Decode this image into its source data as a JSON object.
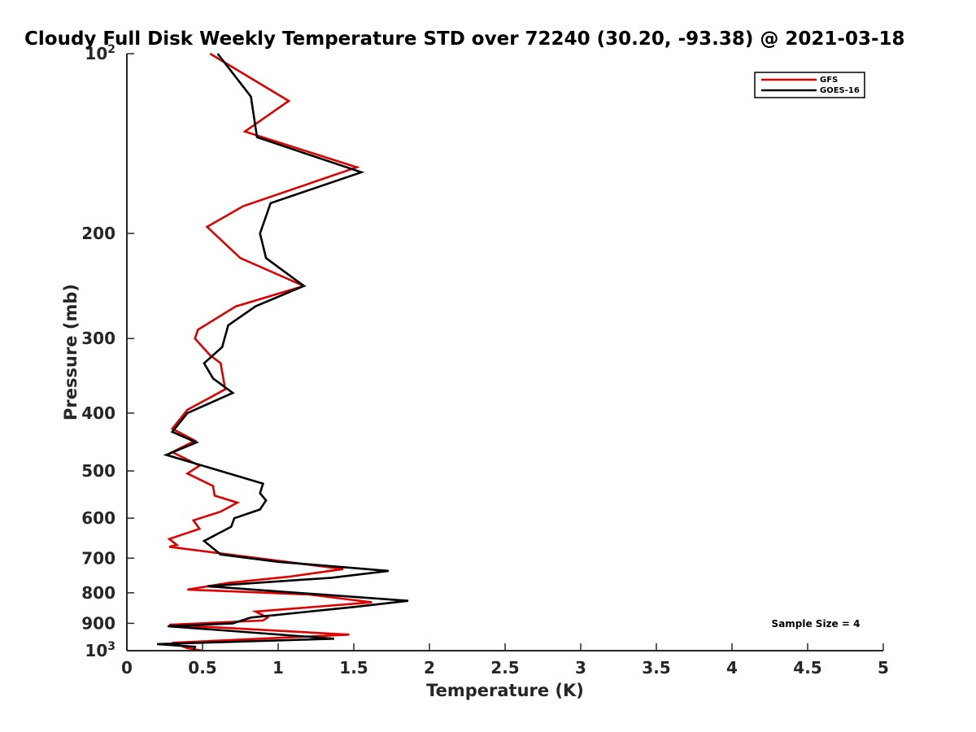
{
  "chart_data": {
    "type": "line",
    "title": "Cloudy Full Disk Weekly Temperature STD over 72240 (30.20, -93.38) @ 2021-03-18",
    "xlabel": "Temperature (K)",
    "ylabel": "Pressure (mb)",
    "xlim": [
      0,
      5
    ],
    "ylim": [
      100,
      1000
    ],
    "yscale": "log",
    "yreversed": true,
    "x_ticks": [
      "0",
      "0.5",
      "1",
      "1.5",
      "2",
      "2.5",
      "3",
      "3.5",
      "4",
      "4.5",
      "5"
    ],
    "y_ticks": [
      {
        "value": 100,
        "base": "10",
        "exp": "2"
      },
      {
        "value": 200,
        "label": "200"
      },
      {
        "value": 300,
        "label": "300"
      },
      {
        "value": 400,
        "label": "400"
      },
      {
        "value": 500,
        "label": "500"
      },
      {
        "value": 600,
        "label": "600"
      },
      {
        "value": 700,
        "label": "700"
      },
      {
        "value": 800,
        "label": "800"
      },
      {
        "value": 900,
        "label": "900"
      },
      {
        "value": 1000,
        "base": "10",
        "exp": "3"
      }
    ],
    "legend": {
      "position": "top-right"
    },
    "series": [
      {
        "name": "GFS",
        "color": "#e00000",
        "points": [
          [
            0.55,
            100
          ],
          [
            1.07,
            120
          ],
          [
            0.78,
            135
          ],
          [
            1.52,
            155
          ],
          [
            0.77,
            180
          ],
          [
            0.53,
            195
          ],
          [
            0.75,
            220
          ],
          [
            1.17,
            245
          ],
          [
            0.72,
            265
          ],
          [
            0.47,
            290
          ],
          [
            0.45,
            300
          ],
          [
            0.55,
            320
          ],
          [
            0.62,
            330
          ],
          [
            0.65,
            365
          ],
          [
            0.4,
            395
          ],
          [
            0.3,
            425
          ],
          [
            0.45,
            445
          ],
          [
            0.3,
            465
          ],
          [
            0.48,
            490
          ],
          [
            0.4,
            505
          ],
          [
            0.57,
            530
          ],
          [
            0.58,
            550
          ],
          [
            0.73,
            565
          ],
          [
            0.62,
            585
          ],
          [
            0.44,
            605
          ],
          [
            0.48,
            625
          ],
          [
            0.28,
            650
          ],
          [
            0.33,
            665
          ],
          [
            0.28,
            670
          ],
          [
            1.43,
            730
          ],
          [
            1.07,
            752
          ],
          [
            0.67,
            770
          ],
          [
            0.4,
            790
          ],
          [
            1.2,
            805
          ],
          [
            1.62,
            830
          ],
          [
            0.85,
            860
          ],
          [
            0.93,
            880
          ],
          [
            0.9,
            890
          ],
          [
            0.28,
            905
          ],
          [
            1.47,
            940
          ],
          [
            0.3,
            970
          ],
          [
            0.4,
            990
          ],
          [
            0.5,
            1000
          ]
        ]
      },
      {
        "name": "GOES-16",
        "color": "#000000",
        "points": [
          [
            0.6,
            100
          ],
          [
            0.82,
            118
          ],
          [
            0.86,
            138
          ],
          [
            1.55,
            158
          ],
          [
            0.95,
            178
          ],
          [
            0.88,
            200
          ],
          [
            0.92,
            220
          ],
          [
            1.17,
            245
          ],
          [
            0.85,
            265
          ],
          [
            0.67,
            285
          ],
          [
            0.63,
            310
          ],
          [
            0.51,
            330
          ],
          [
            0.57,
            350
          ],
          [
            0.7,
            370
          ],
          [
            0.4,
            400
          ],
          [
            0.3,
            430
          ],
          [
            0.46,
            448
          ],
          [
            0.26,
            470
          ],
          [
            0.9,
            525
          ],
          [
            0.88,
            545
          ],
          [
            0.92,
            560
          ],
          [
            0.88,
            580
          ],
          [
            0.71,
            600
          ],
          [
            0.69,
            620
          ],
          [
            0.51,
            655
          ],
          [
            0.62,
            690
          ],
          [
            1.0,
            710
          ],
          [
            1.73,
            735
          ],
          [
            1.35,
            755
          ],
          [
            0.53,
            780
          ],
          [
            1.86,
            825
          ],
          [
            1.5,
            845
          ],
          [
            0.82,
            880
          ],
          [
            0.7,
            900
          ],
          [
            0.27,
            910
          ],
          [
            1.37,
            955
          ],
          [
            0.2,
            975
          ],
          [
            0.45,
            985
          ],
          [
            0.44,
            1000
          ]
        ]
      }
    ],
    "annotation": "Sample Size = 4"
  }
}
